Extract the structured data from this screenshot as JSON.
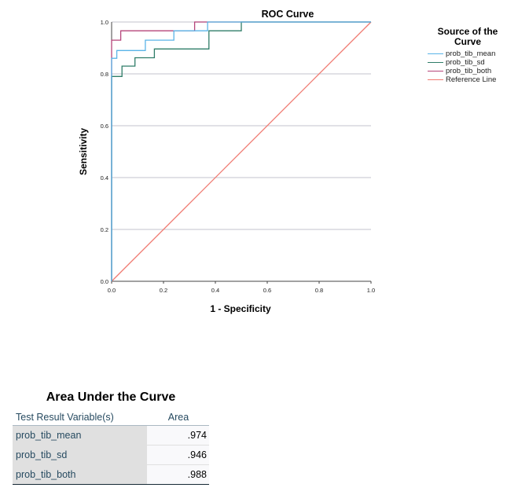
{
  "chart_data": {
    "type": "line",
    "title": "ROC Curve",
    "xlabel": "1 - Specificity",
    "ylabel": "Sensitivity",
    "xlim": [
      0,
      1
    ],
    "ylim": [
      0,
      1
    ],
    "x_ticks": [
      "0.0",
      "0.2",
      "0.4",
      "0.6",
      "0.8",
      "1.0"
    ],
    "y_ticks": [
      "0.0",
      "0.2",
      "0.4",
      "0.6",
      "0.8",
      "1.0"
    ],
    "grid": "horizontal",
    "legend_title": "Source of the Curve",
    "legend_position": "right",
    "series": [
      {
        "name": "prob_tib_mean",
        "color": "#5ab4e8",
        "points": [
          [
            0,
            0
          ],
          [
            0,
            0.86
          ],
          [
            0.02,
            0.86
          ],
          [
            0.02,
            0.89
          ],
          [
            0.13,
            0.89
          ],
          [
            0.13,
            0.93
          ],
          [
            0.24,
            0.93
          ],
          [
            0.24,
            0.966
          ],
          [
            0.37,
            0.966
          ],
          [
            0.37,
            1.0
          ],
          [
            1.0,
            1.0
          ]
        ]
      },
      {
        "name": "prob_tib_sd",
        "color": "#2f7d68",
        "points": [
          [
            0,
            0
          ],
          [
            0,
            0.79
          ],
          [
            0.04,
            0.79
          ],
          [
            0.04,
            0.83
          ],
          [
            0.09,
            0.83
          ],
          [
            0.09,
            0.862
          ],
          [
            0.165,
            0.862
          ],
          [
            0.165,
            0.896
          ],
          [
            0.375,
            0.896
          ],
          [
            0.375,
            0.93
          ],
          [
            0.375,
            0.93
          ],
          [
            0.375,
            0.966
          ],
          [
            0.5,
            0.966
          ],
          [
            0.5,
            1.0
          ],
          [
            1.0,
            1.0
          ]
        ]
      },
      {
        "name": "prob_tib_both",
        "color": "#b5447a",
        "points": [
          [
            0,
            0
          ],
          [
            0,
            0.93
          ],
          [
            0.035,
            0.93
          ],
          [
            0.035,
            0.966
          ],
          [
            0.32,
            0.966
          ],
          [
            0.32,
            1.0
          ],
          [
            1.0,
            1.0
          ]
        ]
      },
      {
        "name": "Reference Line",
        "color": "#f07b72",
        "points": [
          [
            0,
            0
          ],
          [
            1,
            1
          ]
        ]
      }
    ]
  },
  "auc_table": {
    "title": "Area Under the Curve",
    "headers": [
      "Test Result Variable(s)",
      "Area"
    ],
    "rows": [
      {
        "variable": "prob_tib_mean",
        "area": ".974"
      },
      {
        "variable": "prob_tib_sd",
        "area": ".946"
      },
      {
        "variable": "prob_tib_both",
        "area": ".988"
      }
    ]
  }
}
